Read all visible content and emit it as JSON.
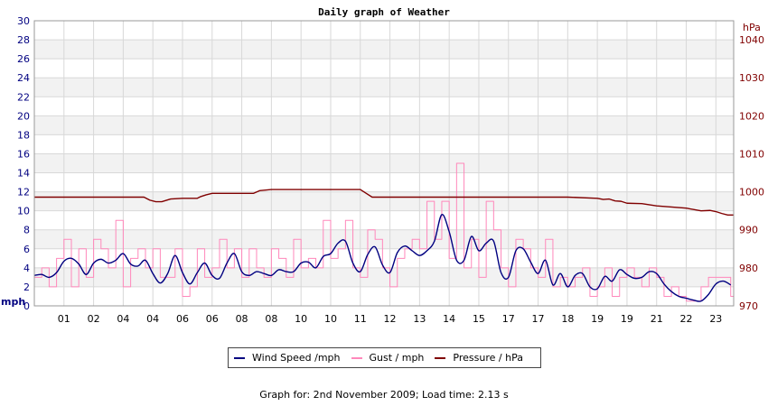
{
  "chart_data": {
    "type": "line",
    "title": "Daily graph of Weather",
    "left_axis": {
      "label": "mph",
      "ylim": [
        0,
        30
      ],
      "ticks": [
        0,
        2,
        4,
        6,
        8,
        10,
        12,
        14,
        16,
        18,
        20,
        22,
        24,
        26,
        28,
        30
      ]
    },
    "right_axis": {
      "label": "hPa",
      "ylim": [
        970,
        1045
      ],
      "ticks": [
        970,
        980,
        990,
        1000,
        1010,
        1020,
        1030,
        1040
      ]
    },
    "x_ticks": [
      {
        "label": "01",
        "h": 1
      },
      {
        "label": "02",
        "h": 2
      },
      {
        "label": "04",
        "h": 3
      },
      {
        "label": "04",
        "h": 4
      },
      {
        "label": "06",
        "h": 5
      },
      {
        "label": "06",
        "h": 6
      },
      {
        "label": "08",
        "h": 7
      },
      {
        "label": "08",
        "h": 8
      },
      {
        "label": "10",
        "h": 9
      },
      {
        "label": "10",
        "h": 10
      },
      {
        "label": "11",
        "h": 11
      },
      {
        "label": "12",
        "h": 12
      },
      {
        "label": "13",
        "h": 13
      },
      {
        "label": "14",
        "h": 14
      },
      {
        "label": "15",
        "h": 15
      },
      {
        "label": "17",
        "h": 16
      },
      {
        "label": "17",
        "h": 17
      },
      {
        "label": "18",
        "h": 18
      },
      {
        "label": "19",
        "h": 19
      },
      {
        "label": "19",
        "h": 20
      },
      {
        "label": "21",
        "h": 21
      },
      {
        "label": "22",
        "h": 22
      },
      {
        "label": "23",
        "h": 23
      }
    ],
    "xlim": [
      0,
      23.6
    ],
    "grid": true,
    "colors": {
      "wind": "#000080",
      "gust": "#ff88bb",
      "pressure": "#800000",
      "band": "#f2f2f2",
      "grid": "#d8d8d8"
    },
    "series": [
      {
        "name": "Wind Speed /mph",
        "axis": "left",
        "x": [
          0,
          0.25,
          0.5,
          0.75,
          1,
          1.25,
          1.5,
          1.75,
          2,
          2.25,
          2.5,
          2.75,
          3,
          3.25,
          3.5,
          3.75,
          4,
          4.25,
          4.5,
          4.75,
          5,
          5.25,
          5.5,
          5.75,
          6,
          6.25,
          6.5,
          6.75,
          7,
          7.25,
          7.5,
          7.75,
          8,
          8.25,
          8.5,
          8.75,
          9,
          9.25,
          9.5,
          9.75,
          10,
          10.25,
          10.5,
          10.75,
          11,
          11.25,
          11.5,
          11.75,
          12,
          12.25,
          12.5,
          12.75,
          13,
          13.25,
          13.5,
          13.75,
          14,
          14.25,
          14.5,
          14.75,
          15,
          15.25,
          15.5,
          15.75,
          16,
          16.25,
          16.5,
          16.75,
          17,
          17.25,
          17.5,
          17.75,
          18,
          18.25,
          18.5,
          18.75,
          19,
          19.25,
          19.5,
          19.75,
          20,
          20.25,
          20.5,
          20.75,
          21,
          21.25,
          21.5,
          21.75,
          22,
          22.25,
          22.5,
          22.75,
          23,
          23.25,
          23.5
        ],
        "values": [
          3.2,
          3.3,
          3.0,
          3.5,
          4.7,
          5.0,
          4.4,
          3.3,
          4.5,
          4.9,
          4.5,
          4.8,
          5.5,
          4.4,
          4.2,
          4.8,
          3.4,
          2.4,
          3.4,
          5.3,
          3.5,
          2.3,
          3.5,
          4.5,
          3.2,
          2.9,
          4.5,
          5.5,
          3.6,
          3.2,
          3.6,
          3.4,
          3.2,
          3.8,
          3.6,
          3.6,
          4.5,
          4.6,
          4.0,
          5.2,
          5.5,
          6.6,
          6.8,
          4.5,
          3.6,
          5.4,
          6.2,
          4.3,
          3.5,
          5.6,
          6.3,
          5.8,
          5.3,
          5.8,
          6.8,
          9.6,
          7.8,
          4.8,
          4.8,
          7.3,
          5.8,
          6.6,
          6.8,
          3.5,
          3.0,
          5.8,
          6.0,
          4.6,
          3.4,
          4.8,
          2.2,
          3.4,
          2.0,
          3.2,
          3.4,
          2.0,
          1.8,
          3.1,
          2.6,
          3.8,
          3.3,
          2.9,
          3.0,
          3.6,
          3.4,
          2.3,
          1.5,
          1.0,
          0.8,
          0.6,
          0.5,
          1.2,
          2.3,
          2.6,
          2.2
        ]
      },
      {
        "name": "Gust / mph",
        "axis": "left",
        "x": [
          0,
          0.25,
          0.5,
          0.75,
          1,
          1.25,
          1.5,
          1.75,
          2,
          2.25,
          2.5,
          2.75,
          3,
          3.25,
          3.5,
          3.75,
          4,
          4.25,
          4.5,
          4.75,
          5,
          5.25,
          5.5,
          5.75,
          6,
          6.25,
          6.5,
          6.75,
          7,
          7.25,
          7.5,
          7.75,
          8,
          8.25,
          8.5,
          8.75,
          9,
          9.25,
          9.5,
          9.75,
          10,
          10.25,
          10.5,
          10.75,
          11,
          11.25,
          11.5,
          11.75,
          12,
          12.25,
          12.5,
          12.75,
          13,
          13.25,
          13.5,
          13.75,
          14,
          14.25,
          14.5,
          14.75,
          15,
          15.25,
          15.5,
          15.75,
          16,
          16.25,
          16.5,
          16.75,
          17,
          17.25,
          17.5,
          17.75,
          18,
          18.25,
          18.5,
          18.75,
          19,
          19.25,
          19.5,
          19.75,
          20,
          20.25,
          20.5,
          20.75,
          21,
          21.25,
          21.5,
          21.75,
          22,
          22.25,
          22.5,
          22.75,
          23,
          23.25,
          23.5
        ],
        "values": [
          3.0,
          4.0,
          2.0,
          5.0,
          7.0,
          2.0,
          6.0,
          3.0,
          7.0,
          6.0,
          4.0,
          9.0,
          2.0,
          5.0,
          6.0,
          4.0,
          6.0,
          3.0,
          3.0,
          6.0,
          1.0,
          2.0,
          6.0,
          3.0,
          4.0,
          7.0,
          4.0,
          6.0,
          3.0,
          6.0,
          4.0,
          3.0,
          6.0,
          5.0,
          3.0,
          7.0,
          4.0,
          5.0,
          4.0,
          9.0,
          5.0,
          6.0,
          9.0,
          4.0,
          3.0,
          8.0,
          7.0,
          4.0,
          2.0,
          5.0,
          6.0,
          7.0,
          6.0,
          11.0,
          7.0,
          11.0,
          5.0,
          15.0,
          4.0,
          7.0,
          3.0,
          11.0,
          8.0,
          4.0,
          2.0,
          7.0,
          6.0,
          4.0,
          3.0,
          7.0,
          2.0,
          3.0,
          2.0,
          3.0,
          4.0,
          1.0,
          2.0,
          4.0,
          1.0,
          3.0,
          4.0,
          3.0,
          2.0,
          4.0,
          3.0,
          1.0,
          2.0,
          1.0,
          0.5,
          0.5,
          2.0,
          3.0,
          3.0,
          3.0,
          1.0
        ]
      },
      {
        "name": "Pressure / hPa",
        "axis": "right",
        "x": [
          0,
          1,
          2,
          3,
          3.7,
          3.9,
          4.1,
          4.3,
          4.6,
          5,
          5.5,
          5.6,
          5.8,
          6,
          6.5,
          7,
          7.2,
          7.4,
          7.6,
          8,
          9,
          10,
          10.5,
          10.8,
          11,
          11.1,
          11.2,
          11.4,
          12,
          13,
          14,
          15,
          16,
          17,
          18,
          19,
          19.2,
          19.4,
          19.6,
          19.8,
          20,
          20.5,
          21,
          21.5,
          22,
          22.5,
          22.8,
          23,
          23.2,
          23.4,
          23.6
        ],
        "values": [
          998.6,
          998.6,
          998.6,
          998.6,
          998.6,
          997.8,
          997.4,
          997.4,
          998.1,
          998.3,
          998.3,
          998.7,
          999.2,
          999.6,
          999.6,
          999.6,
          999.6,
          999.6,
          1000.3,
          1000.6,
          1000.6,
          1000.6,
          1000.6,
          1000.6,
          1000.6,
          1000.1,
          999.6,
          998.6,
          998.6,
          998.6,
          998.6,
          998.6,
          998.6,
          998.6,
          998.6,
          998.3,
          998.0,
          998.1,
          997.6,
          997.5,
          997.0,
          996.9,
          996.3,
          996.0,
          995.7,
          995.0,
          995.1,
          994.8,
          994.3,
          993.9,
          993.9
        ]
      }
    ]
  },
  "legend": {
    "wind": "Wind Speed /mph",
    "gust": "Gust / mph",
    "pressure": "Pressure / hPa"
  },
  "footer": "Graph for: 2nd November 2009; Load time: 2.13 s"
}
